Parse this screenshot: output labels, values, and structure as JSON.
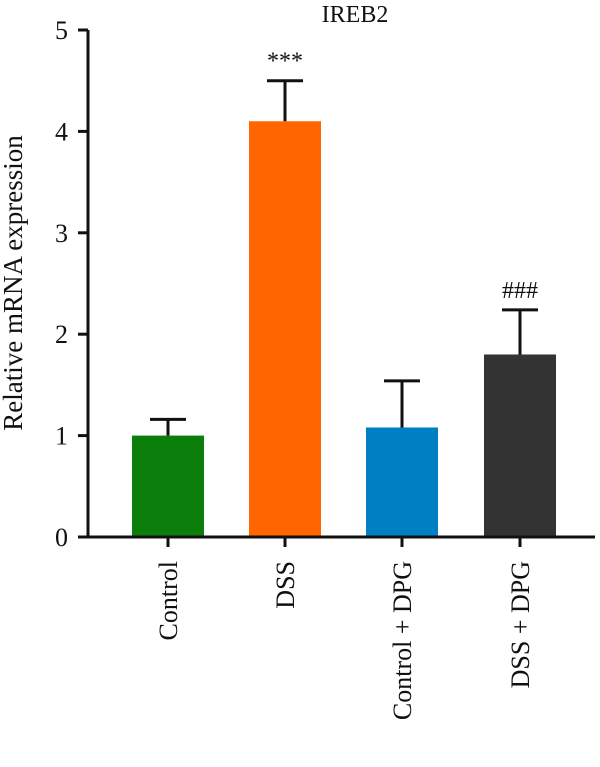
{
  "chart_data": {
    "type": "bar",
    "title": "IREB2",
    "ylabel": "Relative mRNA expression",
    "xlabel": "",
    "ylim": [
      0,
      5
    ],
    "yticks": [
      0,
      1,
      2,
      3,
      4,
      5
    ],
    "grid": false,
    "categories": [
      "Control",
      "DSS",
      "Control + DPG",
      "DSS + DPG"
    ],
    "values": [
      1.0,
      4.1,
      1.08,
      1.8
    ],
    "errors": [
      0.16,
      0.4,
      0.46,
      0.44
    ],
    "colors": [
      "#0a7d0a",
      "#ff6600",
      "#0080c4",
      "#333333"
    ],
    "annotations": [
      "",
      "***",
      "",
      "###"
    ]
  }
}
